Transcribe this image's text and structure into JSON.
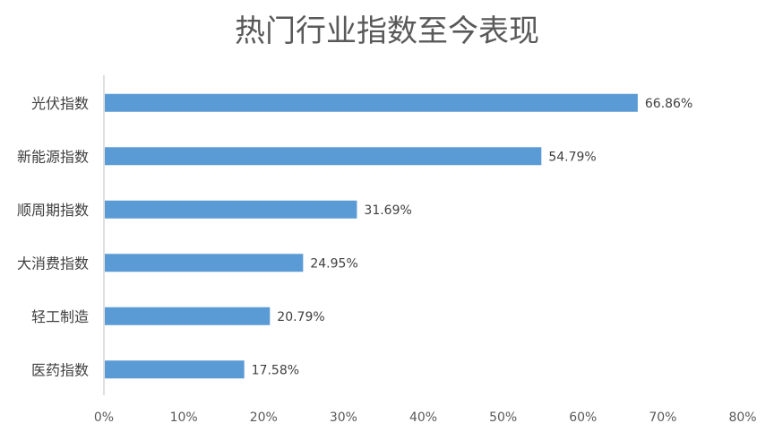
{
  "chart_data": {
    "type": "bar",
    "orientation": "horizontal",
    "title": "热门行业指数至今表现",
    "categories": [
      "光伏指数",
      "新能源指数",
      "顺周期指数",
      "大消费指数",
      "轻工制造",
      "医药指数"
    ],
    "values": [
      66.86,
      54.79,
      31.69,
      24.95,
      20.79,
      17.58
    ],
    "value_labels": [
      "66.86%",
      "54.79%",
      "31.69%",
      "24.95%",
      "20.79%",
      "17.58%"
    ],
    "xlim": [
      0,
      80
    ],
    "x_ticks": [
      0,
      10,
      20,
      30,
      40,
      50,
      60,
      70,
      80
    ],
    "x_tick_labels": [
      "0%",
      "10%",
      "20%",
      "30%",
      "40%",
      "50%",
      "60%",
      "70%",
      "80%"
    ],
    "grid": false,
    "legend": "none",
    "bar_color": "#5B9BD5"
  }
}
